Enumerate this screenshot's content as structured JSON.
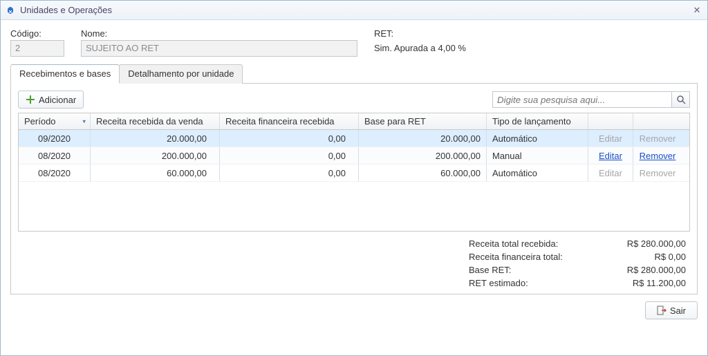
{
  "window": {
    "title": "Unidades e Operações"
  },
  "header": {
    "codigo_label": "Código:",
    "codigo_value": "2",
    "nome_label": "Nome:",
    "nome_value": "SUJEITO AO RET",
    "ret_label": "RET:",
    "ret_value": "Sim. Apurada a 4,00 %"
  },
  "tabs": {
    "t0": "Recebimentos e bases",
    "t1": "Detalhamento por unidade"
  },
  "toolbar": {
    "add_label": "Adicionar"
  },
  "search": {
    "placeholder": "Digite sua pesquisa aqui..."
  },
  "grid": {
    "headers": {
      "periodo": "Período",
      "venda": "Receita recebida da venda",
      "financeira": "Receita financeira recebida",
      "base": "Base para RET",
      "tipo": "Tipo de lançamento"
    },
    "actions": {
      "edit": "Editar",
      "remove": "Remover"
    },
    "rows": [
      {
        "periodo": "09/2020",
        "venda": "20.000,00",
        "financeira": "0,00",
        "base": "20.000,00",
        "tipo": "Automático",
        "editable": false
      },
      {
        "periodo": "08/2020",
        "venda": "200.000,00",
        "financeira": "0,00",
        "base": "200.000,00",
        "tipo": "Manual",
        "editable": true
      },
      {
        "periodo": "08/2020",
        "venda": "60.000,00",
        "financeira": "0,00",
        "base": "60.000,00",
        "tipo": "Automático",
        "editable": false
      }
    ]
  },
  "totals": {
    "receita_total_label": "Receita total recebida:",
    "receita_total_value": "R$ 280.000,00",
    "receita_fin_label": "Receita financeira total:",
    "receita_fin_value": "R$ 0,00",
    "base_ret_label": "Base RET:",
    "base_ret_value": "R$ 280.000,00",
    "ret_est_label": "RET estimado:",
    "ret_est_value": "R$ 11.200,00"
  },
  "footer": {
    "exit_label": "Sair"
  },
  "colors": {
    "selected_row": "#ddeeff",
    "link": "#1a4fc7"
  }
}
